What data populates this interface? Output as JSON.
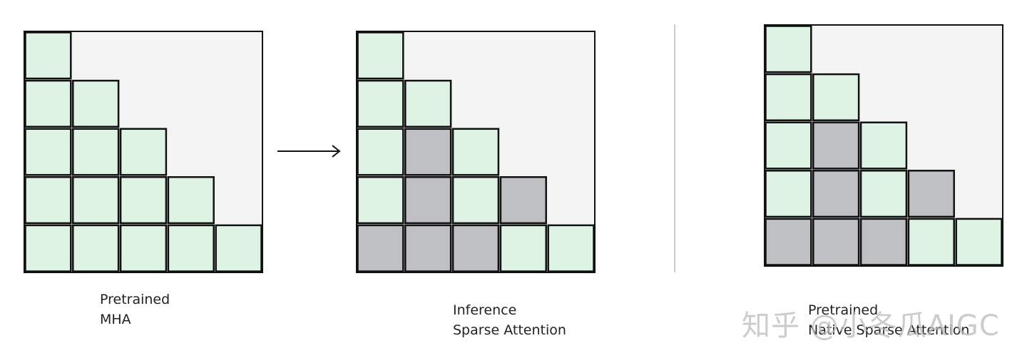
{
  "colors": {
    "active": "#def3e4",
    "skipped": "#bfc0c4",
    "background": "#f4f4f4",
    "border": "#111111",
    "divider": "#cccccc"
  },
  "panels": [
    {
      "caption": [
        "Pretrained",
        "MHA"
      ],
      "grid": [
        [
          "A"
        ],
        [
          "A",
          "A"
        ],
        [
          "A",
          "A",
          "A"
        ],
        [
          "A",
          "A",
          "A",
          "A"
        ],
        [
          "A",
          "A",
          "A",
          "A",
          "A"
        ]
      ]
    },
    {
      "caption": [
        "Inference",
        "Sparse Attention"
      ],
      "grid": [
        [
          "A"
        ],
        [
          "A",
          "A"
        ],
        [
          "A",
          "S",
          "A"
        ],
        [
          "A",
          "S",
          "A",
          "S"
        ],
        [
          "S",
          "S",
          "S",
          "A",
          "A"
        ]
      ]
    },
    {
      "caption": [
        "Pretrained",
        "Native Sparse Attention"
      ],
      "grid": [
        [
          "A"
        ],
        [
          "A",
          "A"
        ],
        [
          "A",
          "S",
          "A"
        ],
        [
          "A",
          "S",
          "A",
          "S"
        ],
        [
          "S",
          "S",
          "S",
          "A",
          "A"
        ]
      ]
    }
  ],
  "watermark": "知乎 @小冬瓜AIGC"
}
